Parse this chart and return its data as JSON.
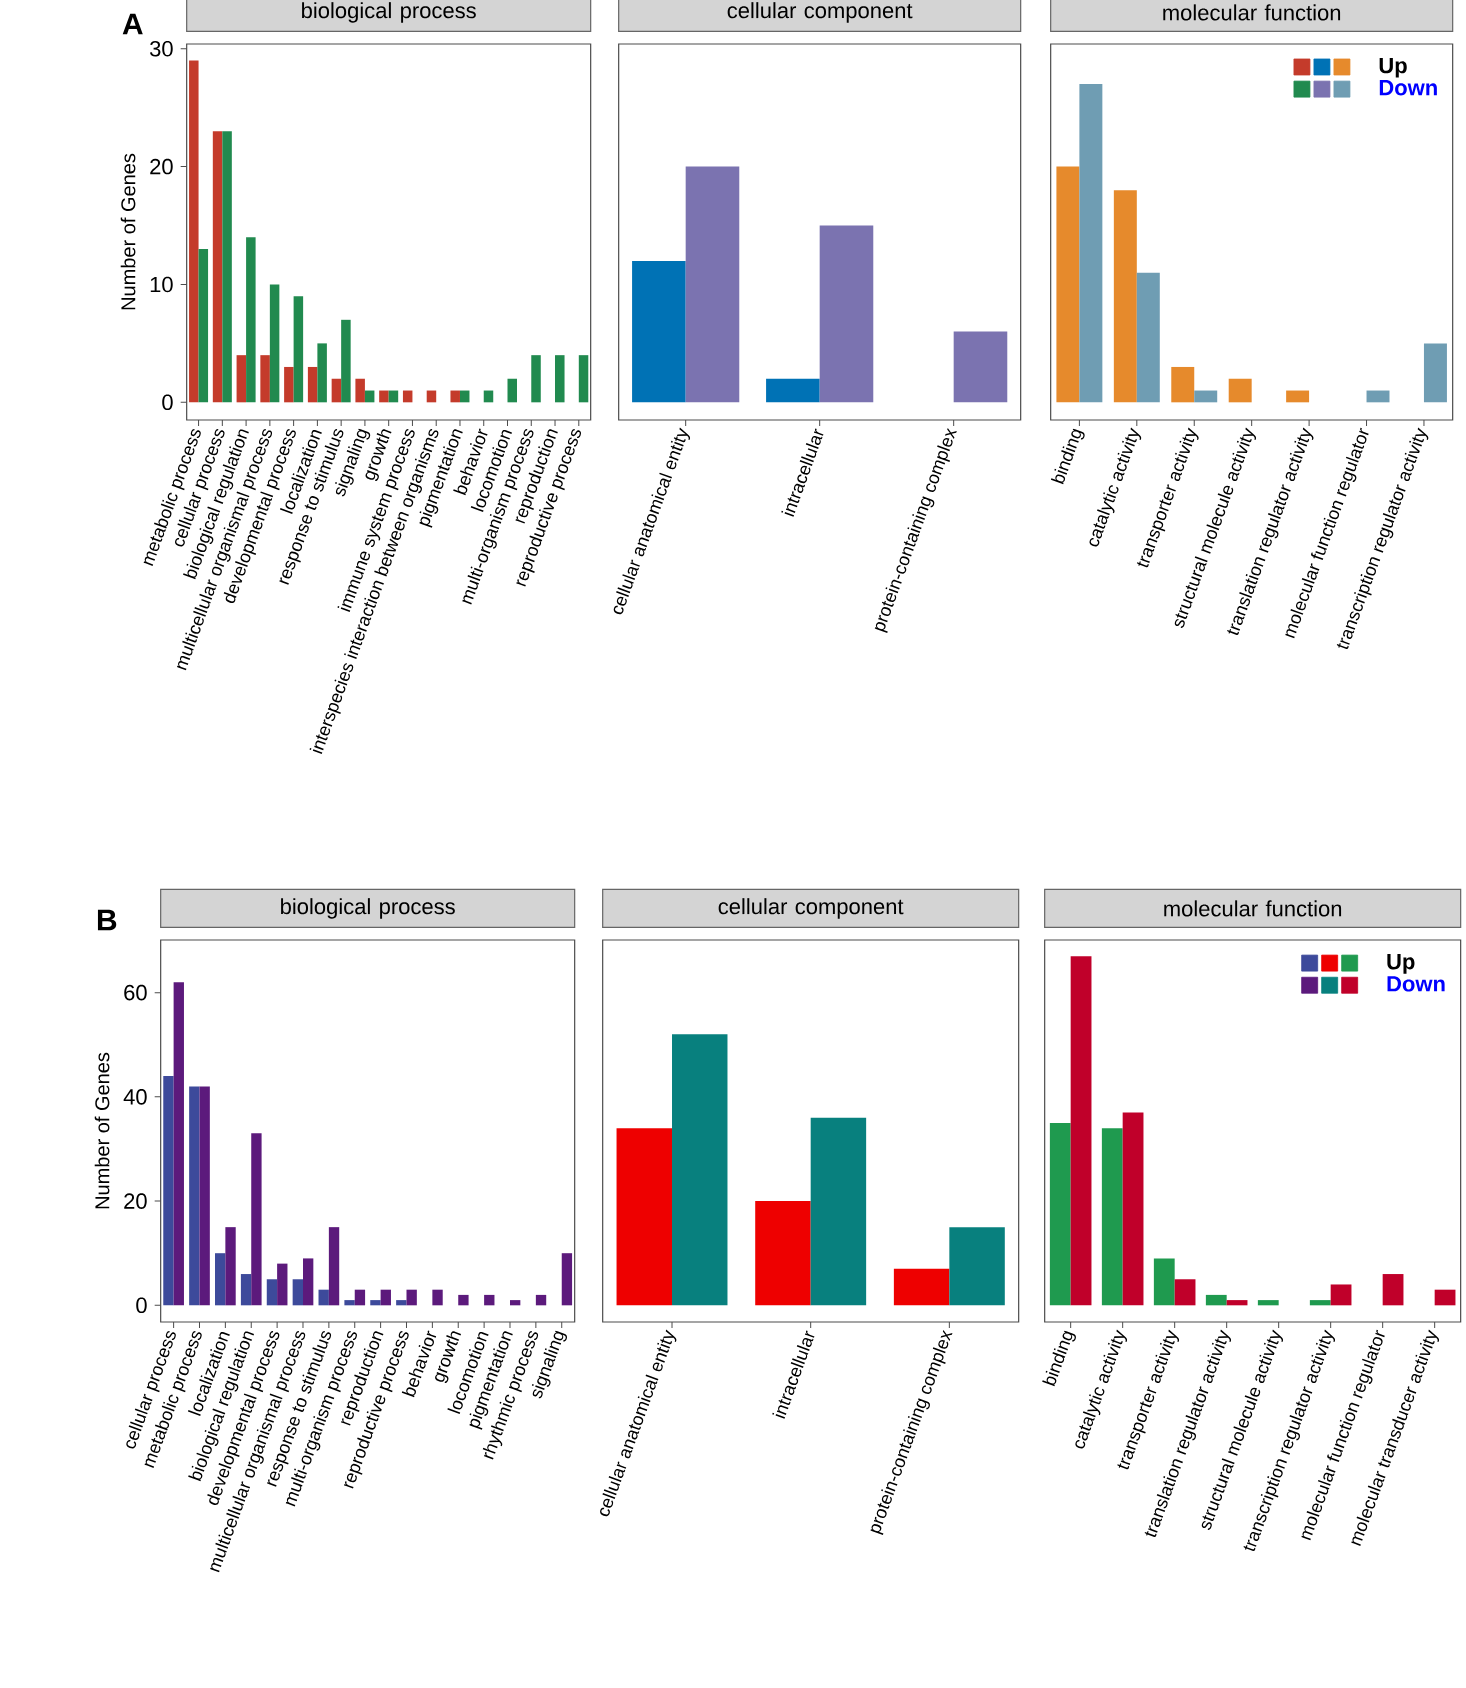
{
  "chart_data": [
    {
      "type": "bar",
      "title": "biological process",
      "ylabel": "Number of Genes",
      "annotations": [
        "A"
      ],
      "categories": [
        "metabolic process",
        "cellular process",
        "biological regulation",
        "multicellular organismal process",
        "developmental process",
        "localization",
        "response to stimulus",
        "signaling",
        "growth",
        "immune system process",
        "interspecies interaction between organisms",
        "pigmentation",
        "behavior",
        "locomotion",
        "multi-organism process",
        "reproduction",
        "reproductive process"
      ],
      "ylim": [
        -1.5,
        30.4
      ],
      "yticks": [
        0,
        10,
        20,
        30
      ],
      "series": [
        {
          "color": "#c43b2b",
          "values": [
            29,
            23,
            4,
            4,
            3,
            3,
            2,
            2,
            1,
            1,
            1,
            1,
            null,
            null,
            null,
            null,
            null
          ]
        },
        {
          "color": "#218a4f",
          "values": [
            13,
            23,
            14,
            10,
            9,
            5,
            7,
            1,
            1,
            null,
            null,
            1,
            1,
            2,
            4,
            4,
            4
          ]
        }
      ]
    },
    {
      "type": "bar",
      "title": "cellular component",
      "tick_labels": "x",
      "categories": [
        "cellular anatomical entity",
        "intracellular",
        "protein-containing complex"
      ],
      "ylim": [
        -1.5,
        30.4
      ],
      "series": [
        {
          "color": "#0072b5",
          "values": [
            12,
            2,
            null
          ]
        },
        {
          "color": "#7b73b0",
          "values": [
            20,
            15,
            6
          ]
        }
      ]
    },
    {
      "type": "bar",
      "title": "molecular function",
      "tick_labels": "x",
      "legend": "top right",
      "categories": [
        "binding",
        "catalytic activity",
        "transporter activity",
        "structural molecule activity",
        "translation regulator activity",
        "molecular function regulator",
        "transcription regulator activity"
      ],
      "ylim": [
        -1.5,
        30.4
      ],
      "series": [
        {
          "name": "Up",
          "color": "#e68a2c",
          "values": [
            20,
            18,
            3,
            2,
            1,
            null,
            null
          ]
        },
        {
          "name": "Down",
          "color": "#6f9db3",
          "values": [
            27,
            11,
            1,
            null,
            null,
            1,
            5
          ]
        }
      ]
    },
    {
      "type": "bar",
      "title": "biological process",
      "ylabel": "Number of Genes",
      "annotations": [
        "B"
      ],
      "categories": [
        "cellular process",
        "metabolic process",
        "localization",
        "biological regulation",
        "developmental process",
        "multicellular organismal process",
        "response to stimulus",
        "multi-organism process",
        "reproduction",
        "reproductive process",
        "behavior",
        "growth",
        "locomotion",
        "pigmentation",
        "rhythmic process",
        "signaling"
      ],
      "ylim": [
        -3.2,
        70.1
      ],
      "yticks": [
        0,
        20,
        40,
        60
      ],
      "series": [
        {
          "color": "#3d4a9b",
          "values": [
            44,
            42,
            10,
            6,
            5,
            5,
            3,
            1,
            1,
            1,
            null,
            null,
            null,
            null,
            null,
            null
          ]
        },
        {
          "color": "#5c1a7c",
          "values": [
            62,
            42,
            15,
            33,
            8,
            9,
            15,
            3,
            3,
            3,
            3,
            2,
            2,
            1,
            2,
            10
          ]
        }
      ]
    },
    {
      "type": "bar",
      "title": "cellular component",
      "tick_labels": "x",
      "categories": [
        "cellular anatomical entity",
        "intracellular",
        "protein-containing complex"
      ],
      "ylim": [
        -3.2,
        70.1
      ],
      "series": [
        {
          "color": "#ee0000",
          "values": [
            34,
            20,
            7
          ]
        },
        {
          "color": "#08807e",
          "values": [
            52,
            36,
            15
          ]
        }
      ]
    },
    {
      "type": "bar",
      "title": "molecular function",
      "tick_labels": "x",
      "legend": "top right",
      "categories": [
        "binding",
        "catalytic activity",
        "transporter activity",
        "translation regulator activity",
        "structural molecule activity",
        "transcription regulator activity",
        "molecular function regulator",
        "molecular transducer activity"
      ],
      "ylim": [
        -3.2,
        70.1
      ],
      "series": [
        {
          "name": "Up",
          "color": "#1f9a4f",
          "values": [
            35,
            34,
            9,
            2,
            1,
            1,
            null,
            null
          ]
        },
        {
          "name": "Down",
          "color": "#c0002a",
          "values": [
            67,
            37,
            5,
            1,
            null,
            4,
            6,
            3
          ]
        }
      ]
    }
  ]
}
